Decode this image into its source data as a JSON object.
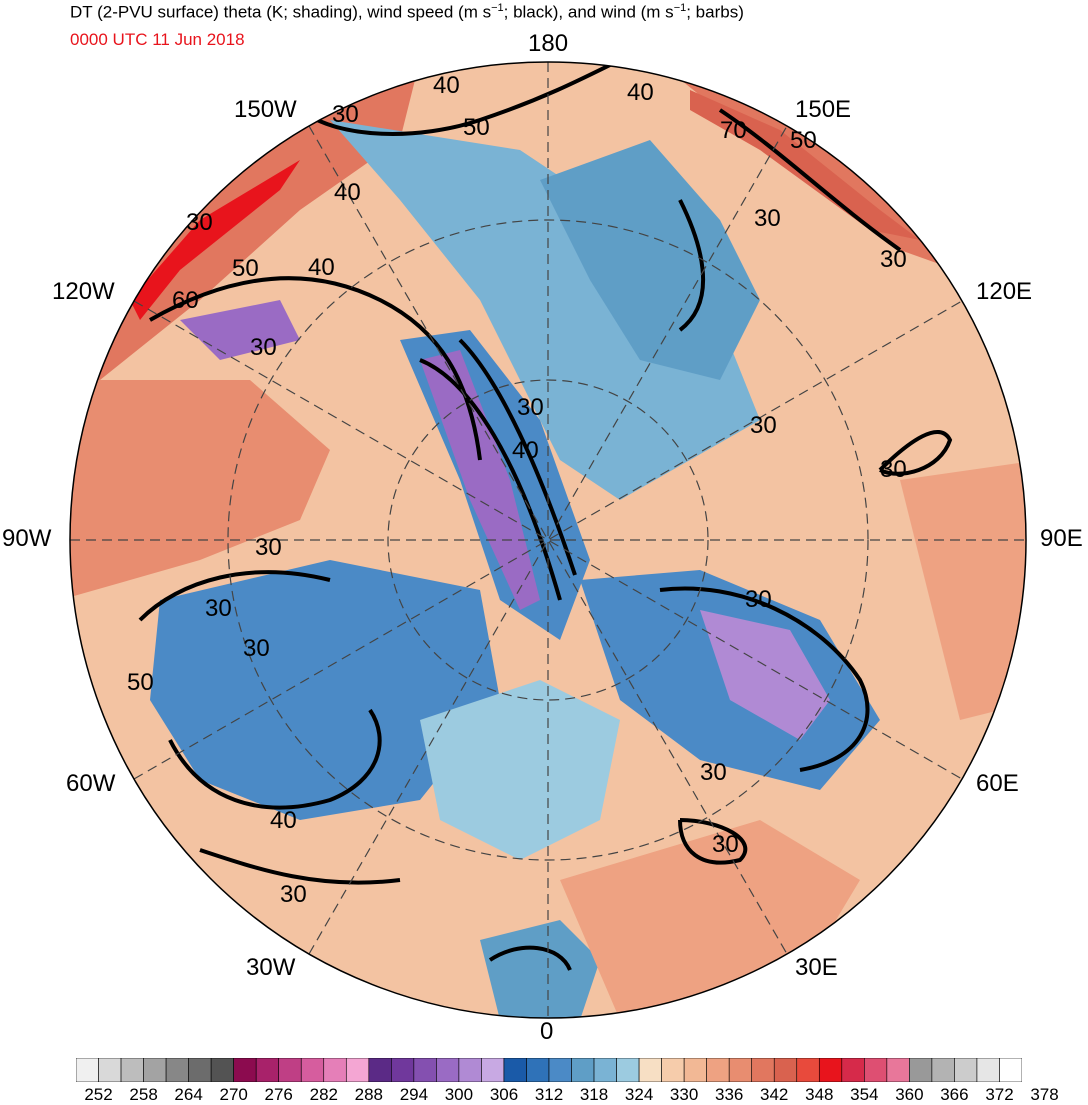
{
  "title": {
    "part1": "DT (2-PVU surface) theta (K; shading), wind speed (m s",
    "sup1": "−1",
    "part2": "; black), and wind (m s",
    "sup2": "−1",
    "part3": "; barbs)"
  },
  "valid_time": "0000 UTC 11 Jun 2018",
  "longitude_labels": {
    "lon_180": "180",
    "lon_150w": "150W",
    "lon_150e": "150E",
    "lon_120w": "120W",
    "lon_120e": "120E",
    "lon_90w": "90W",
    "lon_90e": "90E",
    "lon_60w": "60W",
    "lon_60e": "60E",
    "lon_30w": "30W",
    "lon_30e": "30E",
    "lon_0": "0"
  },
  "contour_labels": [
    "40",
    "50",
    "40",
    "70",
    "50",
    "30",
    "40",
    "30",
    "50",
    "40",
    "30",
    "60",
    "30",
    "30",
    "30",
    "40",
    "30",
    "30",
    "30",
    "30",
    "30",
    "30",
    "30",
    "50",
    "40",
    "30",
    "30"
  ],
  "colorbar": {
    "colors": [
      "#f0f0f0",
      "#d9d9d9",
      "#bdbdbd",
      "#a3a3a3",
      "#878787",
      "#6c6c6c",
      "#535353",
      "#8c0b4f",
      "#a8226a",
      "#bf3f85",
      "#d65d9e",
      "#e57fb8",
      "#f4a6d3",
      "#5b2a86",
      "#70389c",
      "#8450b0",
      "#9a6bc4",
      "#b08ad4",
      "#c8a9e3",
      "#1a5aa8",
      "#2f72b8",
      "#4b8ac6",
      "#5f9ec6",
      "#7ab3d4",
      "#9ccbe0",
      "#f7dfc4",
      "#f6ccab",
      "#f2b895",
      "#eea282",
      "#e88d70",
      "#e1775f",
      "#d9624f",
      "#e84a3c",
      "#e8141c",
      "#d62a4a",
      "#de4f72",
      "#e8779a",
      "#999999",
      "#b3b3b3",
      "#cccccc",
      "#e6e6e6",
      "#ffffff"
    ],
    "tick_labels": [
      "252",
      "258",
      "264",
      "270",
      "276",
      "282",
      "288",
      "294",
      "300",
      "306",
      "312",
      "318",
      "324",
      "330",
      "336",
      "342",
      "348",
      "354",
      "360",
      "366",
      "372",
      "378"
    ]
  }
}
